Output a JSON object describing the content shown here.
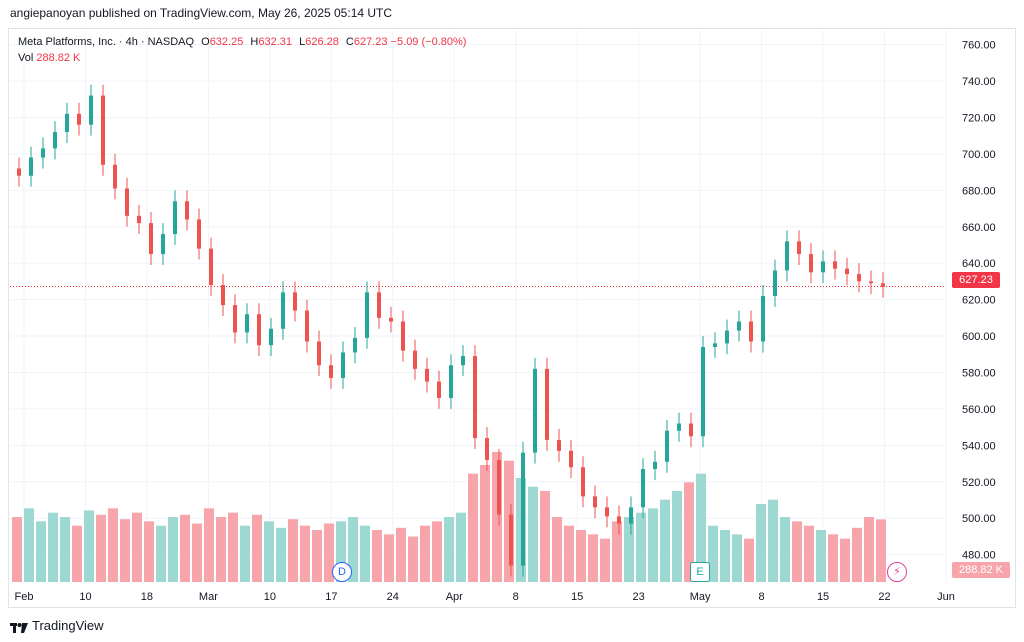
{
  "publish_line": "angiepanoyan published on TradingView.com, May 26, 2025 05:14 UTC",
  "legend": {
    "title": "Meta Platforms, Inc. · 4h · NASDAQ",
    "open_label": "O",
    "open": "632.25",
    "high_label": "H",
    "high": "632.31",
    "low_label": "L",
    "low": "626.28",
    "close_label": "C",
    "close": "627.23",
    "change": "−5.09 (−0.80%)",
    "vol_label": "Vol",
    "vol": "288.82 K"
  },
  "last_price_tag": "627.23",
  "last_volume_tag": "288.82 K",
  "markers": {
    "dividend": "D",
    "earnings": "E",
    "flash": "⚡"
  },
  "brand": "TradingView",
  "colors": {
    "up": "#26a69a",
    "down": "#ef5350",
    "up_vol": "#9ed8d2",
    "down_vol": "#f7a5ab",
    "grid": "#f0f3fa"
  },
  "chart_data": {
    "type": "candlestick",
    "symbol": "META",
    "interval": "4h",
    "ylim": [
      465,
      768
    ],
    "y_ticks": [
      480,
      500,
      520,
      540,
      560,
      580,
      600,
      620,
      640,
      660,
      680,
      700,
      720,
      740,
      760
    ],
    "x_ticks": [
      "Feb",
      "10",
      "18",
      "Mar",
      "10",
      "17",
      "24",
      "Apr",
      "8",
      "15",
      "23",
      "May",
      "8",
      "15",
      "22",
      "Jun"
    ],
    "last_price": 627.23,
    "closes": [
      688,
      698,
      703,
      712,
      722,
      716,
      732,
      694,
      681,
      666,
      662,
      645,
      656,
      674,
      664,
      648,
      628,
      617,
      602,
      612,
      595,
      604,
      624,
      614,
      597,
      584,
      577,
      591,
      599,
      624,
      610,
      608,
      592,
      582,
      575,
      566,
      584,
      589,
      544,
      532,
      502,
      474,
      536,
      582,
      543,
      537,
      528,
      512,
      506,
      501,
      497,
      506,
      527,
      531,
      548,
      552,
      545,
      594,
      596,
      603,
      608,
      597,
      622,
      636,
      652,
      645,
      635,
      641,
      637,
      634,
      630,
      629,
      627
    ],
    "volume_k": [
      300,
      340,
      280,
      320,
      300,
      260,
      330,
      310,
      340,
      290,
      320,
      280,
      260,
      300,
      310,
      270,
      340,
      300,
      320,
      260,
      310,
      280,
      250,
      290,
      260,
      240,
      270,
      280,
      300,
      260,
      240,
      220,
      250,
      210,
      260,
      280,
      300,
      320,
      500,
      540,
      600,
      560,
      480,
      440,
      420,
      300,
      260,
      240,
      220,
      200,
      280,
      300,
      320,
      340,
      380,
      420,
      460,
      500,
      260,
      240,
      220,
      200,
      360,
      380,
      300,
      280,
      260,
      240,
      220,
      200,
      250,
      300,
      289
    ]
  }
}
